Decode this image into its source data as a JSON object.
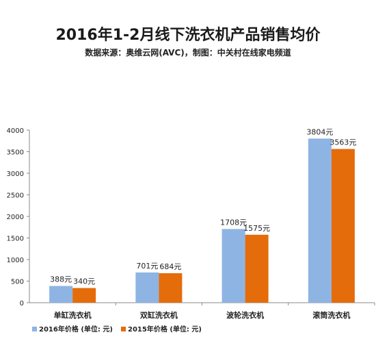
{
  "chart_data": {
    "type": "bar",
    "title": "2016年1-2月线下洗衣机产品销售均价",
    "subtitle": "数据来源：奥维云网(AVC)，制图：中关村在线家电频道",
    "categories": [
      "单缸洗衣机",
      "双缸洗衣机",
      "波轮洗衣机",
      "滚筒洗衣机"
    ],
    "series": [
      {
        "name": "2016年价格 (单位: 元)",
        "color": "#8eb4e3",
        "values": [
          388,
          701,
          1708,
          3804
        ],
        "labels": [
          "388元",
          "701元",
          "1708元",
          "3804元"
        ]
      },
      {
        "name": "2015年价格 (单位: 元)",
        "color": "#e46c0a",
        "values": [
          340,
          684,
          1575,
          3563
        ],
        "labels": [
          "340元",
          "684元",
          "1575元",
          "3563元"
        ]
      }
    ],
    "yticks": [
      "0",
      "500",
      "1000",
      "1500",
      "2000",
      "2500",
      "3000",
      "3500",
      "4000"
    ],
    "ylim": [
      0,
      4000
    ],
    "grid": false,
    "legend": "bottom-left"
  }
}
